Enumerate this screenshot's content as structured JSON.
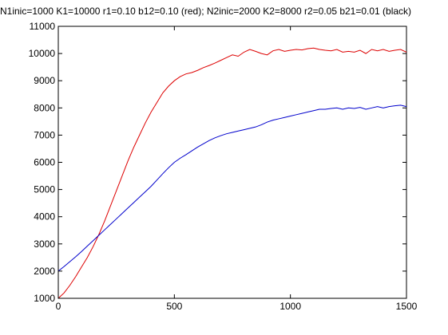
{
  "chart_data": {
    "type": "line",
    "title": "N1inic=1000 K1=10000 r1=0.10 b12=0.10 (red); N2inic=2000 K2=8000 r2=0.05 b21=0.01 (black)",
    "xlabel": "",
    "ylabel": "",
    "xlim": [
      0,
      1500
    ],
    "ylim": [
      1000,
      11000
    ],
    "xticks": [
      0,
      500,
      1000,
      1500
    ],
    "yticks": [
      1000,
      2000,
      3000,
      4000,
      5000,
      6000,
      7000,
      8000,
      9000,
      10000,
      11000
    ],
    "grid": false,
    "series": [
      {
        "color": "#dd0000",
        "x": [
          0,
          25,
          50,
          75,
          100,
          125,
          150,
          175,
          200,
          225,
          250,
          275,
          300,
          325,
          350,
          375,
          400,
          425,
          450,
          475,
          500,
          525,
          550,
          575,
          600,
          625,
          650,
          675,
          700,
          725,
          750,
          775,
          800,
          825,
          850,
          875,
          900,
          925,
          950,
          975,
          1000,
          1025,
          1050,
          1075,
          1100,
          1125,
          1150,
          1175,
          1200,
          1225,
          1250,
          1275,
          1300,
          1325,
          1350,
          1375,
          1400,
          1425,
          1450,
          1475,
          1500
        ],
        "values": [
          1000,
          1200,
          1480,
          1800,
          2150,
          2500,
          2900,
          3350,
          3850,
          4400,
          4950,
          5500,
          6050,
          6550,
          7000,
          7450,
          7850,
          8200,
          8550,
          8800,
          9000,
          9150,
          9250,
          9300,
          9380,
          9480,
          9560,
          9650,
          9750,
          9850,
          9950,
          9900,
          10050,
          10150,
          10080,
          10000,
          9950,
          10100,
          10150,
          10080,
          10120,
          10150,
          10130,
          10180,
          10200,
          10150,
          10120,
          10100,
          10150,
          10050,
          10080,
          10050,
          10120,
          10000,
          10150,
          10100,
          10150,
          10080,
          10120,
          10150,
          10050
        ]
      },
      {
        "color": "#0000cc",
        "x": [
          0,
          25,
          50,
          75,
          100,
          125,
          150,
          175,
          200,
          225,
          250,
          275,
          300,
          325,
          350,
          375,
          400,
          425,
          450,
          475,
          500,
          525,
          550,
          575,
          600,
          625,
          650,
          675,
          700,
          725,
          750,
          775,
          800,
          825,
          850,
          875,
          900,
          925,
          950,
          975,
          1000,
          1025,
          1050,
          1075,
          1100,
          1125,
          1150,
          1175,
          1200,
          1225,
          1250,
          1275,
          1300,
          1325,
          1350,
          1375,
          1400,
          1425,
          1450,
          1475,
          1500
        ],
        "values": [
          2000,
          2170,
          2350,
          2530,
          2720,
          2920,
          3120,
          3320,
          3520,
          3720,
          3920,
          4120,
          4320,
          4520,
          4720,
          4920,
          5120,
          5350,
          5580,
          5800,
          6000,
          6150,
          6280,
          6420,
          6560,
          6680,
          6800,
          6900,
          6980,
          7050,
          7100,
          7150,
          7200,
          7250,
          7300,
          7380,
          7480,
          7550,
          7600,
          7650,
          7700,
          7750,
          7800,
          7850,
          7900,
          7950,
          7950,
          7980,
          8000,
          7950,
          8000,
          7980,
          8020,
          7950,
          8000,
          8050,
          8000,
          8050,
          8080,
          8100,
          8050
        ]
      }
    ]
  }
}
